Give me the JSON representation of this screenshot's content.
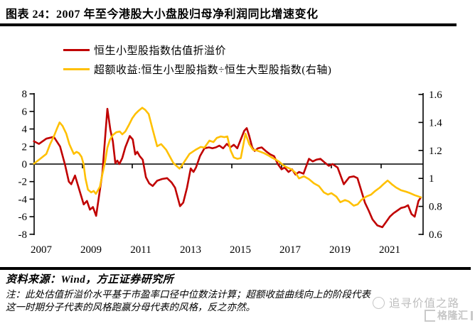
{
  "figure": {
    "title": "图表 24：2007 年至今港股大小盘股归母净利润同比增速变化",
    "source_line": "资料来源：Wind，方正证券研究所",
    "note_line1": "注：此处估值折溢价水平基于市盈率口径中位数法计算；超额收益曲线向上的阶段代表",
    "note_line2": "这一时期分子代表的风格跑赢分母代表的风格，反之亦然。",
    "watermark_text": "追寻价值之路",
    "watermark_logo_text": "格隆汇"
  },
  "legend": [
    {
      "label": "恒生小型股指数估值折溢价",
      "color": "#C00000"
    },
    {
      "label": "超额收益:恒生小型股指数÷恒生大型股指数(右轴)",
      "color": "#FFC000"
    }
  ],
  "chart_data": {
    "type": "line",
    "title": "2007 年至今港股大小盘股归母净利润同比增速变化",
    "grid": false,
    "legend_position": "top-left",
    "x_axis": {
      "ticks": [
        2007,
        2009,
        2011,
        2013,
        2015,
        2017,
        2019,
        2021
      ],
      "range": [
        2007,
        2022.7
      ]
    },
    "left_axis": {
      "ticks": [
        8,
        6,
        4,
        2,
        0,
        -2,
        -4,
        -6,
        -8
      ],
      "range": [
        -8,
        8
      ]
    },
    "right_axis": {
      "ticks": [
        "1.6",
        "1.4",
        "1.2",
        "1",
        "0.8",
        "0.6"
      ],
      "range": [
        0.6,
        1.6
      ]
    },
    "series": [
      {
        "name": "恒生小型股指数估值折溢价",
        "axis": "left",
        "color": "#C00000",
        "points": [
          [
            2007.05,
            2.6
          ],
          [
            2007.25,
            2.3
          ],
          [
            2007.55,
            2.9
          ],
          [
            2007.85,
            3.1
          ],
          [
            2008.1,
            2.0
          ],
          [
            2008.3,
            -0.1
          ],
          [
            2008.45,
            -2.0
          ],
          [
            2008.55,
            -2.3
          ],
          [
            2008.7,
            -1.3
          ],
          [
            2008.9,
            -3.2
          ],
          [
            2009.05,
            -4.6
          ],
          [
            2009.18,
            -4.2
          ],
          [
            2009.3,
            -5.2
          ],
          [
            2009.42,
            -4.9
          ],
          [
            2009.55,
            -5.9
          ],
          [
            2009.8,
            -1.0
          ],
          [
            2010.0,
            6.3
          ],
          [
            2010.12,
            3.9
          ],
          [
            2010.22,
            2.6
          ],
          [
            2010.32,
            0.1
          ],
          [
            2010.4,
            0.4
          ],
          [
            2010.48,
            0.0
          ],
          [
            2010.6,
            0.7
          ],
          [
            2010.72,
            1.9
          ],
          [
            2010.9,
            3.2
          ],
          [
            2011.02,
            2.8
          ],
          [
            2011.12,
            1.1
          ],
          [
            2011.2,
            1.4
          ],
          [
            2011.3,
            0.9
          ],
          [
            2011.42,
            0.5
          ],
          [
            2011.55,
            -1.5
          ],
          [
            2011.68,
            -2.2
          ],
          [
            2011.82,
            -2.5
          ],
          [
            2012.0,
            -1.9
          ],
          [
            2012.2,
            -1.7
          ],
          [
            2012.4,
            -1.6
          ],
          [
            2012.58,
            -2.1
          ],
          [
            2012.72,
            -2.7
          ],
          [
            2012.92,
            -4.8
          ],
          [
            2013.05,
            -4.4
          ],
          [
            2013.2,
            -2.7
          ],
          [
            2013.35,
            -0.5
          ],
          [
            2013.46,
            -0.9
          ],
          [
            2013.56,
            -0.4
          ],
          [
            2013.72,
            0.9
          ],
          [
            2013.9,
            1.8
          ],
          [
            2014.08,
            1.9
          ],
          [
            2014.22,
            1.8
          ],
          [
            2014.36,
            1.9
          ],
          [
            2014.5,
            2.1
          ],
          [
            2014.65,
            1.8
          ],
          [
            2014.8,
            2.3
          ],
          [
            2014.94,
            1.9
          ],
          [
            2015.08,
            2.2
          ],
          [
            2015.22,
            1.8
          ],
          [
            2015.36,
            2.8
          ],
          [
            2015.5,
            3.8
          ],
          [
            2015.6,
            4.1
          ],
          [
            2015.7,
            3.2
          ],
          [
            2015.82,
            1.9
          ],
          [
            2015.92,
            1.5
          ],
          [
            2016.05,
            1.8
          ],
          [
            2016.2,
            1.9
          ],
          [
            2016.4,
            1.4
          ],
          [
            2016.55,
            1.1
          ],
          [
            2016.7,
            0.9
          ],
          [
            2016.85,
            0.0
          ],
          [
            2017.0,
            -0.6
          ],
          [
            2017.12,
            -0.4
          ],
          [
            2017.28,
            -0.9
          ],
          [
            2017.42,
            -0.6
          ],
          [
            2017.56,
            -1.2
          ],
          [
            2017.7,
            -0.9
          ],
          [
            2017.88,
            -1.1
          ],
          [
            2018.1,
            0.6
          ],
          [
            2018.25,
            0.3
          ],
          [
            2018.4,
            0.5
          ],
          [
            2018.56,
            0.6
          ],
          [
            2018.72,
            0.2
          ],
          [
            2018.9,
            -0.2
          ],
          [
            2019.05,
            0.0
          ],
          [
            2019.25,
            -0.4
          ],
          [
            2019.5,
            -2.3
          ],
          [
            2019.72,
            -1.5
          ],
          [
            2019.9,
            -1.4
          ],
          [
            2020.05,
            -1.6
          ],
          [
            2020.2,
            -3.0
          ],
          [
            2020.35,
            -4.4
          ],
          [
            2020.5,
            -5.3
          ],
          [
            2020.65,
            -6.3
          ],
          [
            2020.85,
            -7.0
          ],
          [
            2021.05,
            -7.2
          ],
          [
            2021.2,
            -6.6
          ],
          [
            2021.35,
            -6.0
          ],
          [
            2021.5,
            -5.6
          ],
          [
            2021.65,
            -5.3
          ],
          [
            2021.8,
            -5.0
          ],
          [
            2021.95,
            -4.9
          ],
          [
            2022.08,
            -4.7
          ],
          [
            2022.22,
            -5.7
          ],
          [
            2022.35,
            -6.0
          ],
          [
            2022.5,
            -4.2
          ],
          [
            2022.6,
            -3.8
          ]
        ]
      },
      {
        "name": "超额收益:恒生小型股指数÷恒生大型股指数(右轴)",
        "axis": "right",
        "color": "#FFC000",
        "points": [
          [
            2007.05,
            1.105
          ],
          [
            2007.3,
            1.14
          ],
          [
            2007.55,
            1.175
          ],
          [
            2007.7,
            1.245
          ],
          [
            2007.85,
            1.3
          ],
          [
            2007.97,
            1.355
          ],
          [
            2008.08,
            1.4
          ],
          [
            2008.2,
            1.375
          ],
          [
            2008.35,
            1.32
          ],
          [
            2008.47,
            1.245
          ],
          [
            2008.56,
            1.21
          ],
          [
            2008.65,
            1.175
          ],
          [
            2008.76,
            1.19
          ],
          [
            2008.86,
            1.18
          ],
          [
            2008.96,
            1.155
          ],
          [
            2009.04,
            1.105
          ],
          [
            2009.12,
            1.0
          ],
          [
            2009.22,
            0.92
          ],
          [
            2009.35,
            0.9
          ],
          [
            2009.45,
            0.91
          ],
          [
            2009.54,
            0.89
          ],
          [
            2009.7,
            0.94
          ],
          [
            2009.8,
            1.03
          ],
          [
            2009.9,
            1.11
          ],
          [
            2010.0,
            1.22
          ],
          [
            2010.1,
            1.275
          ],
          [
            2010.22,
            1.31
          ],
          [
            2010.36,
            1.33
          ],
          [
            2010.5,
            1.335
          ],
          [
            2010.6,
            1.315
          ],
          [
            2010.72,
            1.335
          ],
          [
            2010.86,
            1.38
          ],
          [
            2011.0,
            1.43
          ],
          [
            2011.12,
            1.46
          ],
          [
            2011.26,
            1.485
          ],
          [
            2011.4,
            1.505
          ],
          [
            2011.52,
            1.49
          ],
          [
            2011.66,
            1.46
          ],
          [
            2011.82,
            1.35
          ],
          [
            2012.0,
            1.23
          ],
          [
            2012.16,
            1.245
          ],
          [
            2012.36,
            1.205
          ],
          [
            2012.65,
            1.11
          ],
          [
            2012.9,
            1.07
          ],
          [
            2013.06,
            1.11
          ],
          [
            2013.3,
            1.175
          ],
          [
            2013.55,
            1.205
          ],
          [
            2013.75,
            1.225
          ],
          [
            2013.9,
            1.22
          ],
          [
            2014.1,
            1.27
          ],
          [
            2014.26,
            1.26
          ],
          [
            2014.4,
            1.29
          ],
          [
            2014.56,
            1.3
          ],
          [
            2014.7,
            1.295
          ],
          [
            2014.82,
            1.3
          ],
          [
            2014.95,
            1.2
          ],
          [
            2015.08,
            1.15
          ],
          [
            2015.22,
            1.14
          ],
          [
            2015.36,
            1.145
          ],
          [
            2015.55,
            1.32
          ],
          [
            2015.7,
            1.245
          ],
          [
            2015.85,
            1.205
          ],
          [
            2016.0,
            1.2
          ],
          [
            2016.16,
            1.19
          ],
          [
            2016.3,
            1.18
          ],
          [
            2016.46,
            1.165
          ],
          [
            2016.6,
            1.15
          ],
          [
            2016.76,
            1.135
          ],
          [
            2016.9,
            1.12
          ],
          [
            2017.06,
            1.095
          ],
          [
            2017.2,
            1.08
          ],
          [
            2017.4,
            1.065
          ],
          [
            2017.56,
            1.04
          ],
          [
            2017.7,
            1.0
          ],
          [
            2017.9,
            1.015
          ],
          [
            2018.1,
            0.995
          ],
          [
            2018.3,
            0.965
          ],
          [
            2018.5,
            0.945
          ],
          [
            2018.7,
            0.9
          ],
          [
            2018.86,
            0.885
          ],
          [
            2019.0,
            0.895
          ],
          [
            2019.2,
            0.87
          ],
          [
            2019.36,
            0.83
          ],
          [
            2019.55,
            0.845
          ],
          [
            2019.7,
            0.835
          ],
          [
            2019.9,
            0.805
          ],
          [
            2020.06,
            0.815
          ],
          [
            2020.2,
            0.845
          ],
          [
            2020.4,
            0.87
          ],
          [
            2020.6,
            0.885
          ],
          [
            2020.76,
            0.91
          ],
          [
            2020.95,
            0.935
          ],
          [
            2021.1,
            0.96
          ],
          [
            2021.26,
            0.985
          ],
          [
            2021.45,
            0.955
          ],
          [
            2021.6,
            0.935
          ],
          [
            2021.8,
            0.915
          ],
          [
            2022.0,
            0.905
          ],
          [
            2022.16,
            0.895
          ],
          [
            2022.35,
            0.88
          ],
          [
            2022.6,
            0.865
          ]
        ]
      }
    ]
  }
}
